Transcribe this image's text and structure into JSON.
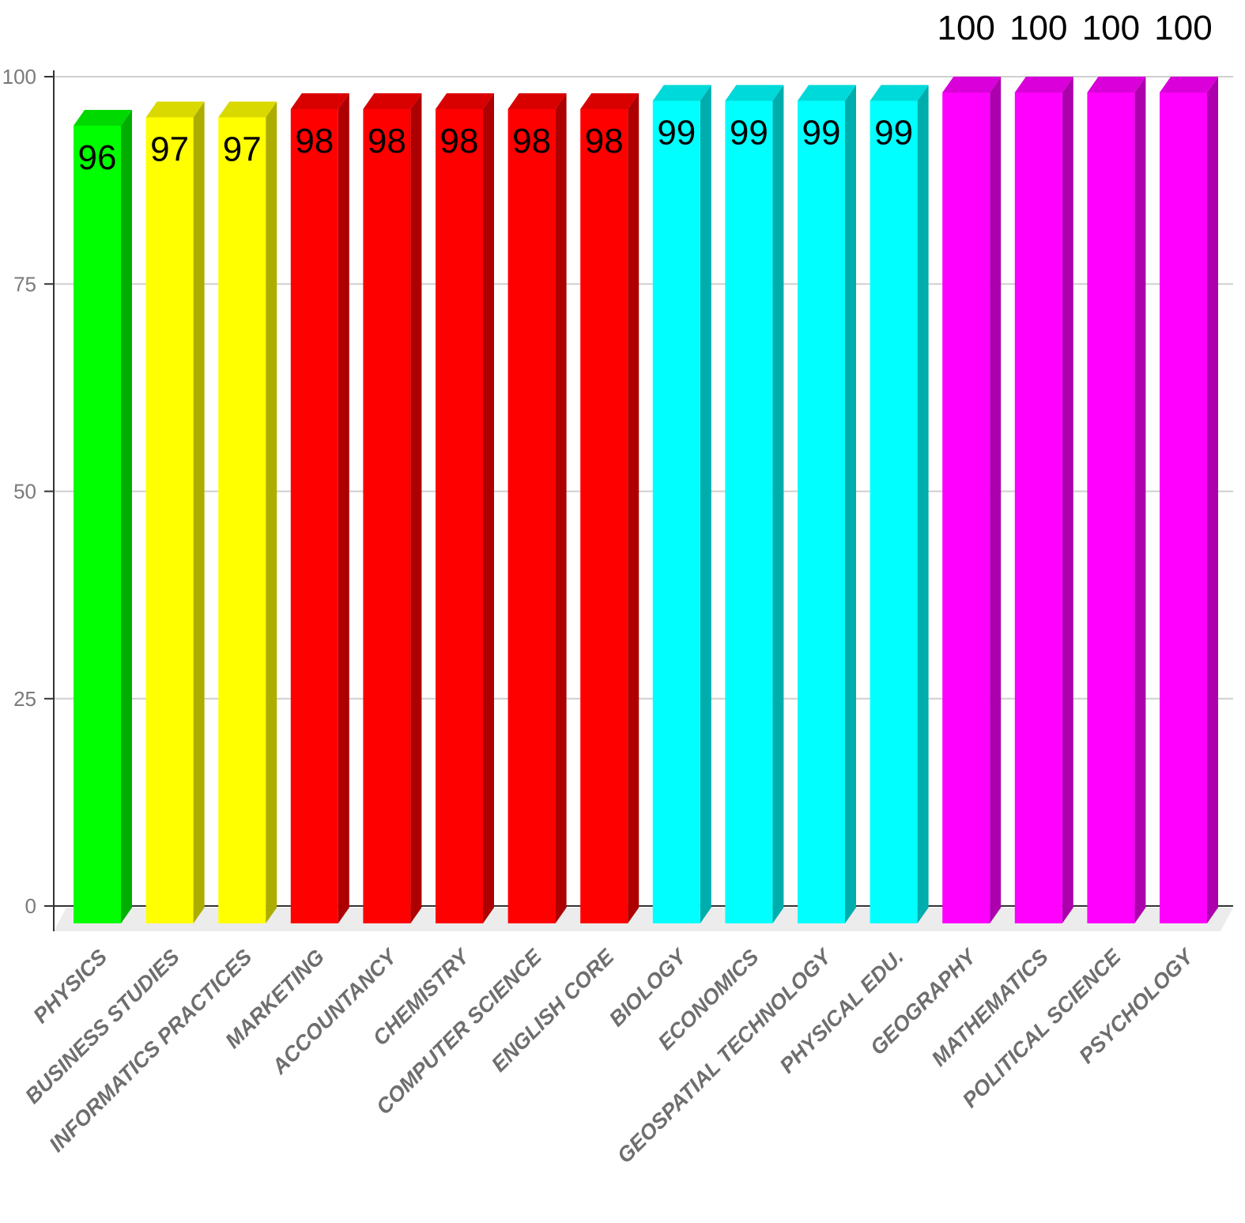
{
  "chart_data": {
    "type": "bar",
    "title": "",
    "xlabel": "",
    "ylabel": "",
    "ylim": [
      0,
      100
    ],
    "yticks": [
      0,
      25,
      50,
      75,
      100
    ],
    "grid": true,
    "legend": "none",
    "categories": [
      "PHYSICS",
      "BUSINESS STUDIES",
      "INFORMATICS PRACTICES",
      "MARKETING",
      "ACCOUNTANCY",
      "CHEMISTRY",
      "COMPUTER SCIENCE",
      "ENGLISH CORE",
      "BIOLOGY",
      "ECONOMICS",
      "GEOSPATIAL TECHNOLOGY",
      "PHYSICAL EDU.",
      "GEOGRAPHY",
      "MATHEMATICS",
      "POLITICAL SCIENCE",
      "PSYCHOLOGY"
    ],
    "values": [
      96,
      97,
      97,
      98,
      98,
      98,
      98,
      98,
      99,
      99,
      99,
      99,
      100,
      100,
      100,
      100
    ],
    "colors": {
      "96": "#00ff00",
      "97": "#ffff00",
      "98": "#ff0000",
      "99": "#00ffff",
      "100": "#ff00ff"
    }
  }
}
